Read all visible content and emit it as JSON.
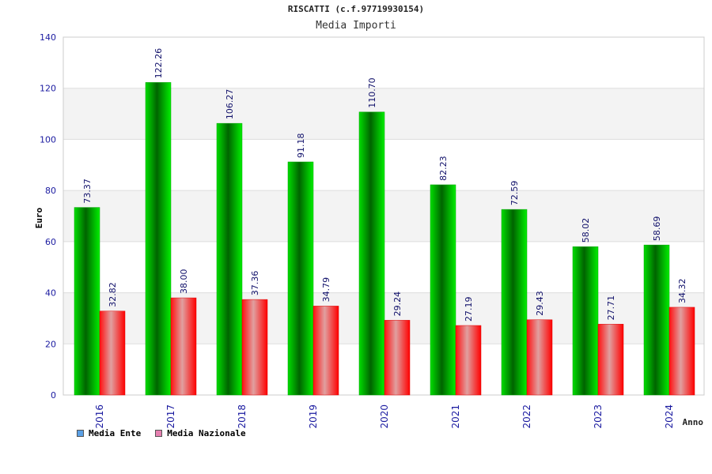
{
  "chart_data": {
    "type": "bar",
    "title": "RISCATTI (c.f.97719930154)",
    "subtitle": "Media Importi",
    "xlabel": "Anno",
    "ylabel": "Euro",
    "ylim": [
      0,
      140
    ],
    "yticks": [
      0,
      20,
      40,
      60,
      80,
      100,
      120,
      140
    ],
    "categories": [
      "2016",
      "2017",
      "2018",
      "2019",
      "2020",
      "2021",
      "2022",
      "2023",
      "2024"
    ],
    "series": [
      {
        "name": "Media Ente",
        "color": "#00c000",
        "legend_color": "#5aa0e6",
        "values": [
          73.37,
          122.26,
          106.27,
          91.18,
          110.7,
          82.23,
          72.59,
          58.02,
          58.69
        ]
      },
      {
        "name": "Media Nazionale",
        "color": "#ff1a1a",
        "legend_color": "#e680b0",
        "values": [
          32.82,
          38.0,
          37.36,
          34.79,
          29.24,
          27.19,
          29.43,
          27.71,
          34.32
        ]
      }
    ],
    "grid": true,
    "legend_position": "bottom-left"
  }
}
